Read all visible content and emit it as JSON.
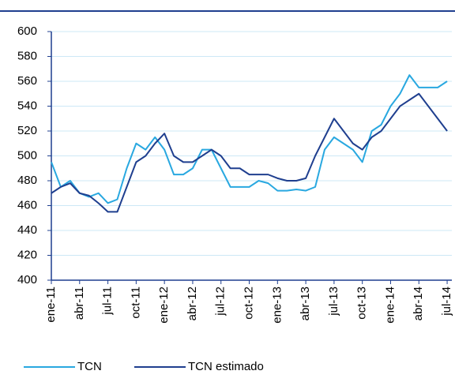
{
  "chart_data": {
    "type": "line",
    "categories": [
      "ene-11",
      null,
      null,
      "abr-11",
      null,
      null,
      "jul-11",
      null,
      null,
      "oct-11",
      null,
      null,
      "ene-12",
      null,
      null,
      "abr-12",
      null,
      null,
      "jul-12",
      null,
      null,
      "oct-12",
      null,
      null,
      "ene-13",
      null,
      null,
      "abr-13",
      null,
      null,
      "jul-13",
      null,
      null,
      "oct-13",
      null,
      null,
      "ene-14",
      null,
      null,
      "abr-14",
      null,
      null,
      "jul-14"
    ],
    "series": [
      {
        "name": "TCN",
        "color": "#29a8e0",
        "values": [
          495,
          475,
          480,
          470,
          467,
          470,
          462,
          465,
          490,
          510,
          505,
          515,
          505,
          485,
          485,
          490,
          505,
          505,
          490,
          475,
          475,
          475,
          480,
          478,
          472,
          472,
          473,
          472,
          475,
          505,
          515,
          510,
          505,
          495,
          520,
          525,
          540,
          550,
          565,
          555,
          555,
          555,
          560
        ]
      },
      {
        "name": "TCN estimado",
        "color": "#1f3f8f",
        "values": [
          470,
          475,
          478,
          470,
          468,
          462,
          455,
          455,
          475,
          495,
          500,
          510,
          518,
          500,
          495,
          495,
          500,
          505,
          500,
          490,
          490,
          485,
          485,
          485,
          482,
          480,
          480,
          482,
          500,
          515,
          530,
          520,
          510,
          505,
          515,
          520,
          530,
          540,
          545,
          550,
          540,
          530,
          520
        ]
      }
    ],
    "ylim": [
      400,
      600
    ],
    "yticks": [
      400,
      420,
      440,
      460,
      480,
      500,
      520,
      540,
      560,
      580,
      600
    ],
    "grid": true,
    "legend": "bottom"
  }
}
